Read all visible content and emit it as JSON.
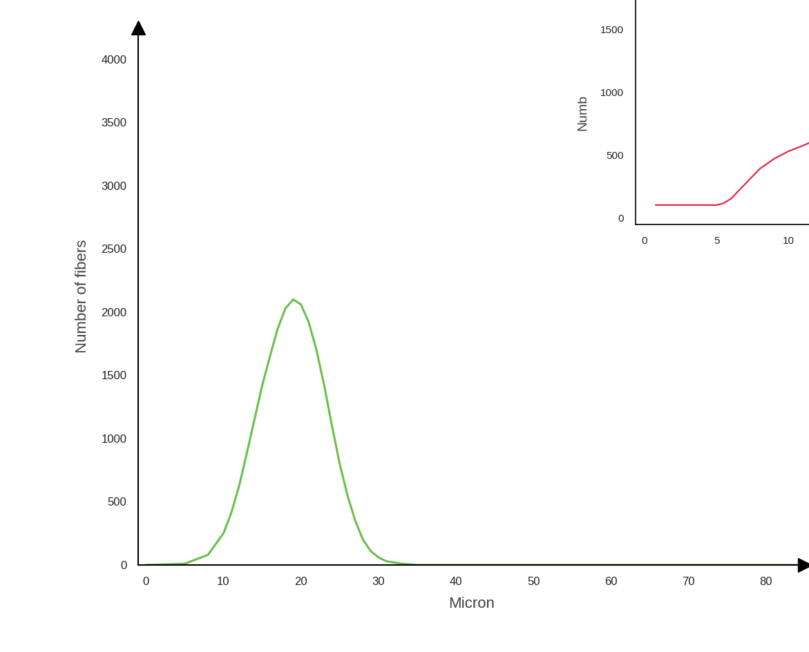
{
  "chart_data": [
    {
      "type": "line",
      "x_label": "Micron",
      "y_label": "Number of fibers",
      "x": [
        0,
        5,
        8,
        10,
        11,
        12,
        13,
        14,
        15,
        16,
        17,
        18,
        19,
        20,
        21,
        22,
        23,
        24,
        25,
        26,
        27,
        28,
        29,
        30,
        31,
        33,
        35,
        40,
        50,
        60,
        70,
        80,
        85
      ],
      "values": [
        0,
        10,
        80,
        250,
        410,
        620,
        880,
        1150,
        1420,
        1650,
        1870,
        2030,
        2100,
        2060,
        1920,
        1700,
        1420,
        1100,
        800,
        550,
        350,
        200,
        110,
        60,
        30,
        10,
        0,
        0,
        0,
        0,
        0,
        0,
        0
      ],
      "color": "#6abf4b",
      "xlim": [
        -1,
        85
      ],
      "xticks": [
        0,
        10,
        20,
        30,
        40,
        50,
        60,
        70,
        80
      ],
      "ylim": [
        0,
        4250
      ],
      "yticks": [
        0,
        500,
        1000,
        1500,
        2000,
        2500,
        3000,
        3500,
        4000
      ]
    },
    {
      "type": "line",
      "y_label": "Numb",
      "x": [
        0.8,
        2,
        3,
        4,
        5,
        5.5,
        6,
        6.5,
        7,
        7.5,
        8,
        9,
        10,
        11,
        11.4
      ],
      "values": [
        100,
        100,
        100,
        100,
        100,
        115,
        150,
        210,
        270,
        330,
        390,
        470,
        530,
        575,
        595
      ],
      "color": "#e0284a",
      "xlim": [
        -0.6,
        11.4
      ],
      "xticks": [
        0,
        5,
        10
      ],
      "ylim": [
        -55,
        1735
      ],
      "yticks": [
        0,
        500,
        1000,
        1500
      ]
    }
  ]
}
